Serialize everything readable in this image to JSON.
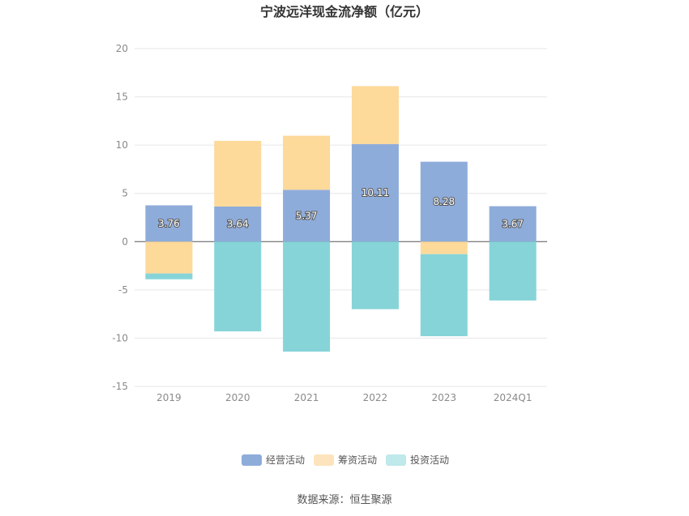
{
  "chart_data": {
    "type": "bar",
    "stacked": true,
    "title": "宁波远洋现金流净额（亿元）",
    "categories": [
      "2019",
      "2020",
      "2021",
      "2022",
      "2023",
      "2024Q1"
    ],
    "ylim": [
      -15,
      20
    ],
    "yticks": [
      20,
      15,
      10,
      5,
      0,
      -5,
      -10,
      -15
    ],
    "grid": true,
    "legend_position": "bottom",
    "series": [
      {
        "name": "经营活动",
        "color": "#8eacda",
        "values": [
          3.76,
          3.64,
          5.37,
          10.11,
          8.28,
          3.67
        ]
      },
      {
        "name": "筹资活动",
        "color": "#fdd99a",
        "values": [
          -3.3,
          6.8,
          5.6,
          6.0,
          -1.3,
          0.0
        ]
      },
      {
        "name": "投资活动",
        "color": "#86d4d8",
        "values": [
          -0.6,
          -9.3,
          -11.4,
          -7.0,
          -8.5,
          -6.1
        ]
      }
    ],
    "data_labels": [
      "3.76",
      "3.64",
      "5.37",
      "10.11",
      "8.28",
      "3.67"
    ],
    "legend_swatch_colors": [
      "#8eacda",
      "#fde4bd",
      "#bfe9ea"
    ]
  },
  "source_text": "数据来源：恒生聚源"
}
